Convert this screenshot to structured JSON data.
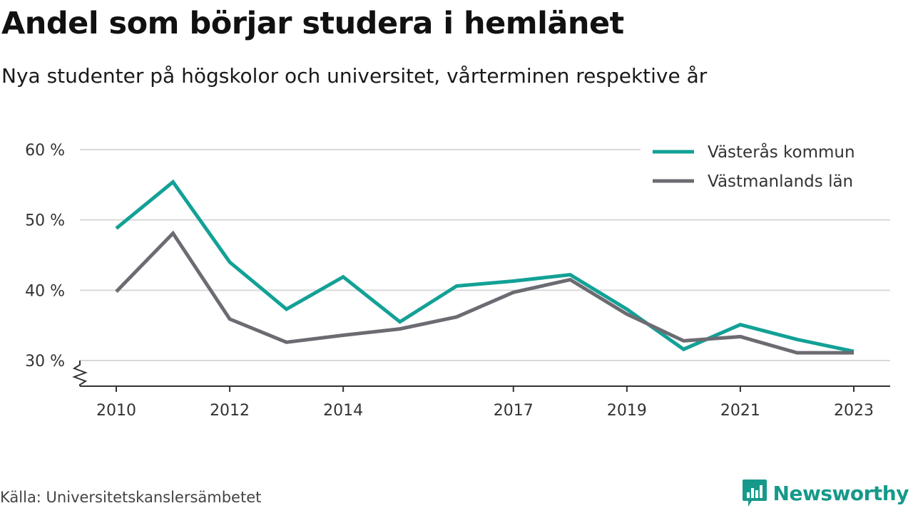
{
  "title": "Andel som börjar studera i hemlänet",
  "subtitle": "Nya studenter på högskolor och universitet, vårterminen respektive år",
  "source": "Källa: Universitetskanslersämbetet",
  "brand": {
    "name": "Newsworthy",
    "icon": "newsworthy-logo-icon",
    "color": "#16998a"
  },
  "chart_data": {
    "type": "line",
    "x": [
      2010,
      2011,
      2012,
      2013,
      2014,
      2015,
      2016,
      2017,
      2018,
      2019,
      2020,
      2021,
      2022,
      2023
    ],
    "x_ticks": [
      2010,
      2012,
      2014,
      2017,
      2019,
      2021,
      2023
    ],
    "x_tick_labels": [
      "2010",
      "2012",
      "2014",
      "2017",
      "2019",
      "2021",
      "2023"
    ],
    "y_ticks": [
      30,
      40,
      50,
      60
    ],
    "y_tick_labels": [
      "30 %",
      "40 %",
      "50 %",
      "60 %"
    ],
    "ylim": [
      30,
      60
    ],
    "xlim": [
      2010,
      2023
    ],
    "grid": true,
    "y_axis_break": true,
    "legend": "top-right",
    "series": [
      {
        "name": "Västerås kommun",
        "color": "#13a196",
        "values": [
          48.8,
          55.4,
          44.0,
          37.3,
          41.9,
          35.5,
          40.6,
          41.3,
          42.2,
          37.3,
          31.6,
          35.1,
          33.0,
          31.3
        ]
      },
      {
        "name": "Västmanlands län",
        "color": "#6d6b72",
        "values": [
          39.8,
          48.1,
          35.9,
          32.6,
          33.6,
          34.5,
          36.2,
          39.7,
          41.5,
          36.6,
          32.8,
          33.4,
          31.1,
          31.1
        ]
      }
    ]
  }
}
